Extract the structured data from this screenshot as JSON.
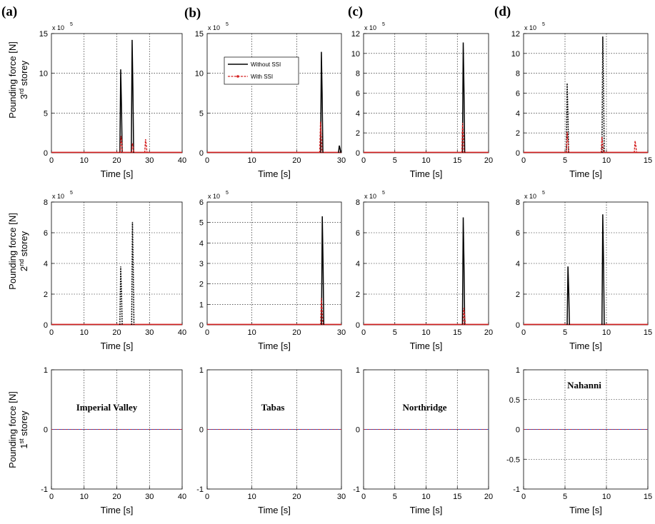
{
  "panel_labels": [
    "(a)",
    "(b)",
    "(c)",
    "(d)"
  ],
  "row_labels": [
    {
      "main": "Pounding force [N]",
      "pre": "3",
      "sup": "rd",
      "post": " storey"
    },
    {
      "main": "Pounding force [N]",
      "pre": "2",
      "sup": "nd",
      "post": " storey"
    },
    {
      "main": "Pounding force [N]",
      "pre": "1",
      "sup": "st",
      "post": " storey"
    }
  ],
  "legend": {
    "without": "Without SSI",
    "with": "With SSI"
  },
  "exponent": {
    "base": "x 10",
    "power": "5"
  },
  "colors": {
    "without": "#000000",
    "with": "#d42020",
    "baseline_blue": "#3050c0"
  },
  "chart_data": [
    {
      "type": "line",
      "row": 0,
      "col": 0,
      "xlabel": "Time [s]",
      "xlim": [
        0,
        40
      ],
      "xticks": [
        0,
        10,
        20,
        30,
        40
      ],
      "ylim": [
        0,
        15
      ],
      "yticks": [
        0,
        5,
        10,
        15
      ],
      "exponent": true,
      "grid": true,
      "series": [
        {
          "name": "Without SSI",
          "style": "solid",
          "peaks": [
            {
              "t": 21.3,
              "v": 10.5
            },
            {
              "t": 24.8,
              "v": 14.2
            }
          ]
        },
        {
          "name": "With SSI",
          "style": "dashed",
          "peaks": [
            {
              "t": 21.4,
              "v": 2.1
            },
            {
              "t": 24.9,
              "v": 1.2
            },
            {
              "t": 28.9,
              "v": 1.7
            }
          ]
        }
      ]
    },
    {
      "type": "line",
      "row": 0,
      "col": 1,
      "xlabel": "Time [s]",
      "xlim": [
        0,
        30
      ],
      "xticks": [
        0,
        10,
        20,
        30
      ],
      "ylim": [
        0,
        15
      ],
      "yticks": [
        0,
        5,
        10,
        15
      ],
      "exponent": true,
      "grid": true,
      "legend": true,
      "series": [
        {
          "name": "Without SSI",
          "style": "solid",
          "peaks": [
            {
              "t": 25.6,
              "v": 12.7
            },
            {
              "t": 29.6,
              "v": 0.9
            }
          ]
        },
        {
          "name": "With SSI",
          "style": "dashed",
          "peaks": [
            {
              "t": 25.4,
              "v": 3.9
            }
          ]
        }
      ]
    },
    {
      "type": "line",
      "row": 0,
      "col": 2,
      "xlabel": "Time [s]",
      "xlim": [
        0,
        20
      ],
      "xticks": [
        0,
        5,
        10,
        15,
        20
      ],
      "ylim": [
        0,
        12
      ],
      "yticks": [
        0,
        2,
        4,
        6,
        8,
        10,
        12
      ],
      "exponent": true,
      "grid": true,
      "series": [
        {
          "name": "Without SSI",
          "style": "solid",
          "peaks": [
            {
              "t": 16.0,
              "v": 11.1
            }
          ]
        },
        {
          "name": "With SSI",
          "style": "dashed",
          "peaks": [
            {
              "t": 15.9,
              "v": 3.0
            }
          ]
        }
      ]
    },
    {
      "type": "line",
      "row": 0,
      "col": 3,
      "xlabel": "Time [s]",
      "xlim": [
        0,
        15
      ],
      "xticks": [
        0,
        5,
        10,
        15
      ],
      "ylim": [
        0,
        12
      ],
      "yticks": [
        0,
        2,
        4,
        6,
        8,
        10,
        12
      ],
      "exponent": true,
      "grid": true,
      "series": [
        {
          "name": "Without SSI",
          "style": "dotted",
          "peaks": [
            {
              "t": 5.3,
              "v": 7.0
            },
            {
              "t": 9.6,
              "v": 11.7
            }
          ]
        },
        {
          "name": "With SSI",
          "style": "dashed",
          "peaks": [
            {
              "t": 5.3,
              "v": 2.1
            },
            {
              "t": 9.5,
              "v": 1.6
            },
            {
              "t": 13.5,
              "v": 1.2
            }
          ]
        }
      ]
    },
    {
      "type": "line",
      "row": 1,
      "col": 0,
      "xlabel": "Time [s]",
      "xlim": [
        0,
        40
      ],
      "xticks": [
        0,
        10,
        20,
        30,
        40
      ],
      "ylim": [
        0,
        8
      ],
      "yticks": [
        0,
        2,
        4,
        6,
        8
      ],
      "exponent": true,
      "grid": true,
      "series": [
        {
          "name": "Without SSI",
          "style": "dotted",
          "peaks": [
            {
              "t": 21.3,
              "v": 3.8
            },
            {
              "t": 24.9,
              "v": 6.7
            }
          ]
        }
      ]
    },
    {
      "type": "line",
      "row": 1,
      "col": 1,
      "xlabel": "Time [s]",
      "xlim": [
        0,
        30
      ],
      "xticks": [
        0,
        10,
        20,
        30
      ],
      "ylim": [
        0,
        6
      ],
      "yticks": [
        0,
        1,
        2,
        3,
        4,
        5,
        6
      ],
      "exponent": true,
      "grid": true,
      "series": [
        {
          "name": "Without SSI",
          "style": "solid",
          "peaks": [
            {
              "t": 25.8,
              "v": 5.3
            }
          ]
        },
        {
          "name": "With SSI",
          "style": "dashed",
          "peaks": [
            {
              "t": 25.6,
              "v": 1.3
            }
          ]
        }
      ]
    },
    {
      "type": "line",
      "row": 1,
      "col": 2,
      "xlabel": "Time [s]",
      "xlim": [
        0,
        20
      ],
      "xticks": [
        0,
        5,
        10,
        15,
        20
      ],
      "ylim": [
        0,
        8
      ],
      "yticks": [
        0,
        2,
        4,
        6,
        8
      ],
      "exponent": true,
      "grid": true,
      "series": [
        {
          "name": "Without SSI",
          "style": "solid",
          "peaks": [
            {
              "t": 16.0,
              "v": 7.0
            }
          ]
        },
        {
          "name": "With SSI",
          "style": "dashed",
          "peaks": [
            {
              "t": 16.1,
              "v": 1.1
            }
          ]
        }
      ]
    },
    {
      "type": "line",
      "row": 1,
      "col": 3,
      "xlabel": "Time [s]",
      "xlim": [
        0,
        15
      ],
      "xticks": [
        0,
        5,
        10,
        15
      ],
      "ylim": [
        0,
        8
      ],
      "yticks": [
        0,
        2,
        4,
        6,
        8
      ],
      "exponent": true,
      "grid": true,
      "series": [
        {
          "name": "Without SSI",
          "style": "solid",
          "peaks": [
            {
              "t": 5.4,
              "v": 3.8
            },
            {
              "t": 9.6,
              "v": 7.2
            }
          ]
        }
      ]
    },
    {
      "type": "line",
      "row": 2,
      "col": 0,
      "xlabel": "Time [s]",
      "xlim": [
        0,
        40
      ],
      "xticks": [
        0,
        10,
        20,
        30,
        40
      ],
      "ylim": [
        -1,
        1
      ],
      "yticks": [
        -1,
        0,
        1
      ],
      "grid": true,
      "annotation": "Imperial Valley",
      "series": []
    },
    {
      "type": "line",
      "row": 2,
      "col": 1,
      "xlabel": "Time [s]",
      "xlim": [
        0,
        30
      ],
      "xticks": [
        0,
        10,
        20,
        30
      ],
      "ylim": [
        -1,
        1
      ],
      "yticks": [
        -1,
        0,
        1
      ],
      "grid": true,
      "annotation": "Tabas",
      "series": []
    },
    {
      "type": "line",
      "row": 2,
      "col": 2,
      "xlabel": "Time [s]",
      "xlim": [
        0,
        20
      ],
      "xticks": [
        0,
        5,
        10,
        15,
        20
      ],
      "ylim": [
        -1,
        1
      ],
      "yticks": [
        -1,
        0,
        1
      ],
      "grid": true,
      "annotation": "Northridge",
      "series": []
    },
    {
      "type": "line",
      "row": 2,
      "col": 3,
      "xlabel": "Time [s]",
      "xlim": [
        0,
        15
      ],
      "xticks": [
        0,
        5,
        10,
        15
      ],
      "ylim": [
        -1,
        1
      ],
      "yticks": [
        -1,
        -0.5,
        0,
        0.5,
        1
      ],
      "grid": true,
      "annotation": "Nahanni",
      "series": []
    }
  ]
}
